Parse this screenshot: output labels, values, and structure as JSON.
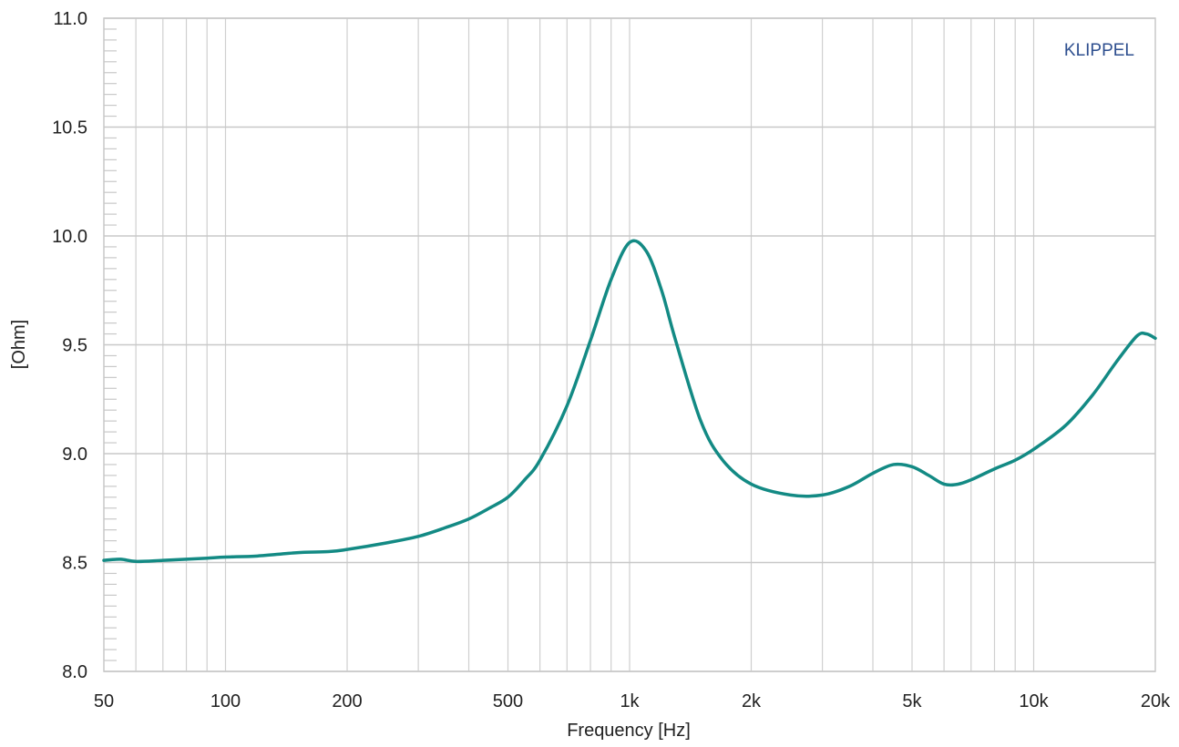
{
  "chart_data": {
    "type": "line",
    "title": "",
    "xlabel": "Frequency [Hz]",
    "ylabel": "[Ohm]",
    "x_scale": "log",
    "xlim": [
      50,
      20000
    ],
    "ylim": [
      8.0,
      11.0
    ],
    "grid": true,
    "watermark": "KLIPPEL",
    "x_ticks": [
      {
        "value": 50,
        "label": "50"
      },
      {
        "value": 100,
        "label": "100"
      },
      {
        "value": 200,
        "label": "200"
      },
      {
        "value": 500,
        "label": "500"
      },
      {
        "value": 1000,
        "label": "1k"
      },
      {
        "value": 2000,
        "label": "2k"
      },
      {
        "value": 5000,
        "label": "5k"
      },
      {
        "value": 10000,
        "label": "10k"
      },
      {
        "value": 20000,
        "label": "20k"
      }
    ],
    "y_ticks": [
      {
        "value": 8.0,
        "label": "8.0"
      },
      {
        "value": 8.5,
        "label": "8.5"
      },
      {
        "value": 9.0,
        "label": "9.0"
      },
      {
        "value": 9.5,
        "label": "9.5"
      },
      {
        "value": 10.0,
        "label": "10.0"
      },
      {
        "value": 10.5,
        "label": "10.5"
      },
      {
        "value": 11.0,
        "label": "11.0"
      }
    ],
    "series": [
      {
        "color": "#138a84",
        "x": [
          50,
          55,
          60,
          70,
          80,
          90,
          100,
          120,
          150,
          180,
          200,
          250,
          300,
          350,
          400,
          450,
          500,
          550,
          600,
          700,
          800,
          900,
          1000,
          1100,
          1200,
          1300,
          1500,
          1700,
          2000,
          2500,
          3000,
          3500,
          4000,
          4500,
          5000,
          5500,
          6000,
          6500,
          7000,
          8000,
          9000,
          10000,
          12000,
          14000,
          16000,
          18000,
          19000,
          20000
        ],
        "y": [
          8.51,
          8.515,
          8.505,
          8.51,
          8.515,
          8.52,
          8.525,
          8.53,
          8.545,
          8.55,
          8.56,
          8.59,
          8.62,
          8.66,
          8.7,
          8.75,
          8.8,
          8.88,
          8.97,
          9.22,
          9.52,
          9.8,
          9.97,
          9.93,
          9.75,
          9.52,
          9.15,
          8.97,
          8.86,
          8.81,
          8.81,
          8.85,
          8.91,
          8.95,
          8.94,
          8.9,
          8.86,
          8.86,
          8.88,
          8.93,
          8.97,
          9.02,
          9.13,
          9.27,
          9.42,
          9.54,
          9.55,
          9.53
        ]
      }
    ]
  }
}
